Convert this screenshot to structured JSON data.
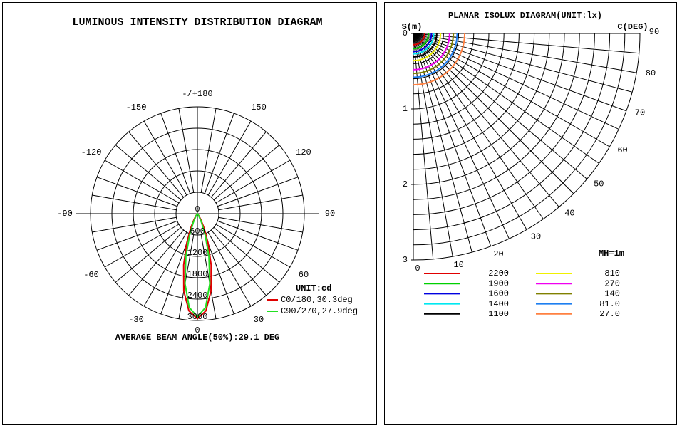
{
  "chart_data": [
    {
      "type": "polar",
      "title": "LUMINOUS INTENSITY DISTRIBUTION DIAGRAM",
      "unit_label": "UNIT:cd",
      "footer": "AVERAGE BEAM ANGLE(50%):29.1 DEG",
      "angle_ticks": [
        {
          "value": 180,
          "label": "-/+180"
        },
        150,
        -150,
        120,
        -120,
        90,
        -90,
        60,
        -60,
        30,
        -30,
        0
      ],
      "rlim": [
        0,
        3000
      ],
      "rticks": [
        0,
        600,
        1200,
        1800,
        2400,
        3000
      ],
      "x": [
        -40,
        -35,
        -30,
        -25,
        -20,
        -15,
        -10,
        -5,
        0,
        5,
        10,
        15,
        20,
        25,
        30,
        35,
        40
      ],
      "series": [
        {
          "name": "C0/180,30.3deg",
          "color": "#e00000",
          "values": [
            20,
            70,
            190,
            440,
            870,
            1490,
            2200,
            2740,
            2950,
            2740,
            2200,
            1490,
            870,
            440,
            190,
            70,
            20
          ]
        },
        {
          "name": "C90/270,27.9deg",
          "color": "#22e022",
          "values": [
            5,
            25,
            90,
            270,
            640,
            1250,
            2000,
            2640,
            2900,
            2640,
            2000,
            1250,
            640,
            270,
            90,
            25,
            5
          ]
        }
      ]
    },
    {
      "type": "isolux",
      "title": "PLANAR ISOLUX DIAGRAM(UNIT:lx)",
      "ylabel": "S(m)",
      "angle_label": "C(DEG)",
      "ylim": [
        0,
        3
      ],
      "yticks": [
        0,
        1,
        2,
        3
      ],
      "angle_ticks": [
        0,
        10,
        20,
        30,
        40,
        50,
        60,
        70,
        80,
        90
      ],
      "note": "MH=1m",
      "series": [
        {
          "name": "2200",
          "color": "#e00000",
          "radius": 0.15
        },
        {
          "name": "1900",
          "color": "#00d000",
          "radius": 0.2
        },
        {
          "name": "1600",
          "color": "#0000e0",
          "radius": 0.24
        },
        {
          "name": "1400",
          "color": "#00e8f0",
          "radius": 0.27
        },
        {
          "name": "1100",
          "color": "#000000",
          "radius": 0.31
        },
        {
          "name": "810",
          "color": "#f0f000",
          "radius": 0.36
        },
        {
          "name": "270",
          "color": "#f000f0",
          "radius": 0.48
        },
        {
          "name": "140",
          "color": "#808000",
          "radius": 0.53
        },
        {
          "name": "81.0",
          "color": "#1e7ff0",
          "radius": 0.58
        },
        {
          "name": "27.0",
          "color": "#ff8040",
          "radius": 0.68
        }
      ]
    }
  ]
}
